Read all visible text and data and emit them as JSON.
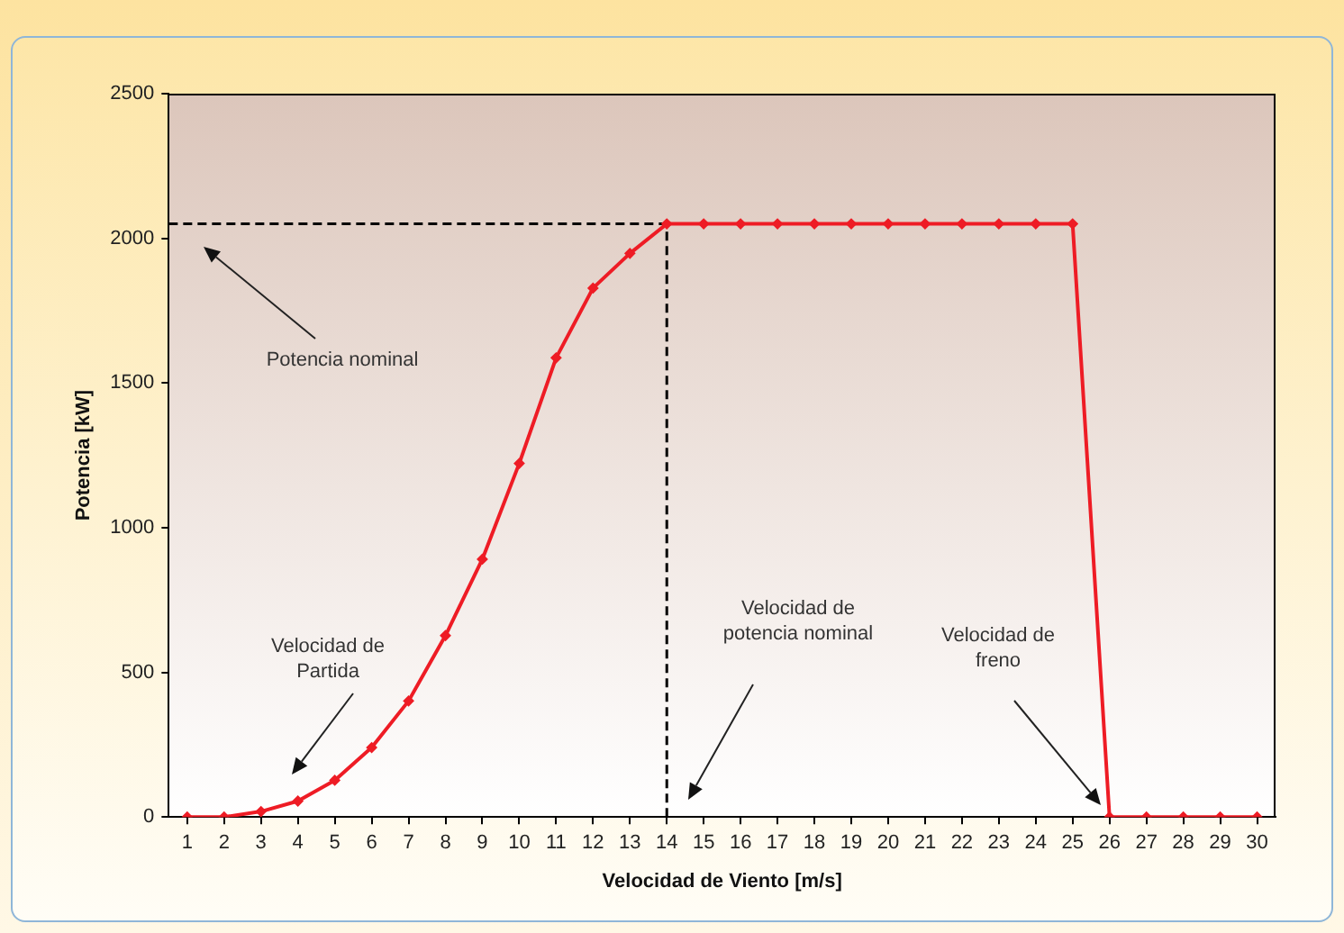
{
  "chart_data": {
    "type": "line",
    "xlabel": "Velocidad de Viento [m/s]",
    "ylabel": "Potencia [kW]",
    "x": [
      1,
      2,
      3,
      4,
      5,
      6,
      7,
      8,
      9,
      10,
      11,
      12,
      13,
      14,
      15,
      16,
      17,
      18,
      19,
      20,
      21,
      22,
      23,
      24,
      25,
      26,
      27,
      28,
      29,
      30
    ],
    "series": [
      {
        "color": "#ee1c25",
        "values": [
          0,
          0,
          19,
          55,
          127,
          240,
          401,
          627,
          891,
          1222,
          1587,
          1828,
          1948,
          2050,
          2050,
          2050,
          2050,
          2050,
          2050,
          2050,
          2050,
          2050,
          2050,
          2050,
          2050,
          0,
          0,
          0,
          0,
          0
        ]
      }
    ],
    "xlim": [
      0.5,
      30.5
    ],
    "xticks": [
      1,
      2,
      3,
      4,
      5,
      6,
      7,
      8,
      9,
      10,
      11,
      12,
      13,
      14,
      15,
      16,
      17,
      18,
      19,
      20,
      21,
      22,
      23,
      24,
      25,
      26,
      27,
      28,
      29,
      30
    ],
    "ylim": [
      0,
      2500
    ],
    "yticks": [
      0,
      500,
      1000,
      1500,
      2000,
      2500
    ],
    "ref_lines": [
      {
        "axis": "y",
        "value": 2050,
        "color": "#000000",
        "line_style": "dashed"
      },
      {
        "axis": "x",
        "value": 14,
        "color": "#000000",
        "line_style": "dashed"
      }
    ],
    "annotations": [
      "Potencia nominal",
      "Velocidad de\nPartida",
      "Velocidad de\npotencia nominal",
      "Velocidad de\nfreno"
    ],
    "grid": false,
    "legend": false,
    "marker": "diamond",
    "line_style": "solid"
  }
}
